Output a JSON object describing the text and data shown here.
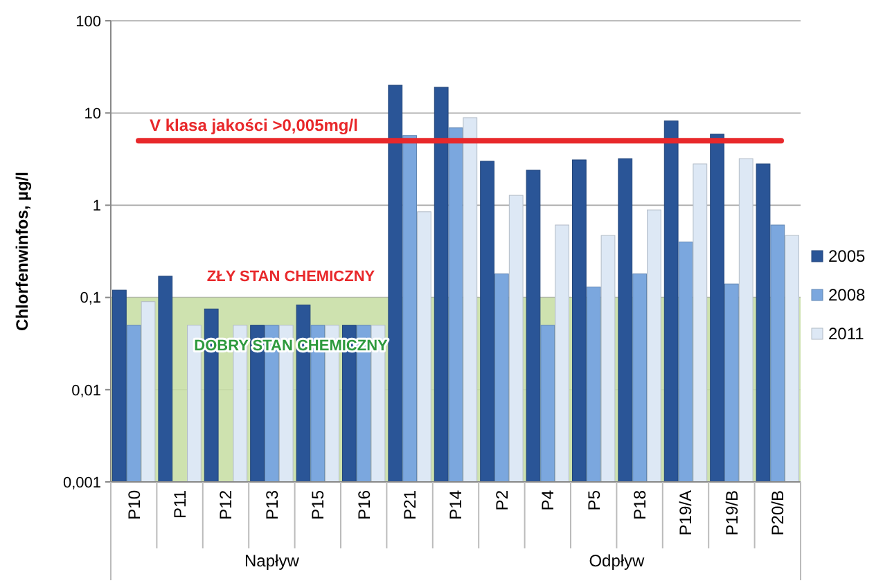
{
  "chart_data": {
    "type": "bar",
    "ylabel": "Chlorfenwinfos, µg/l",
    "categories": [
      "P10",
      "P11",
      "P12",
      "P13",
      "P15",
      "P16",
      "P21",
      "P14",
      "P2",
      "P4",
      "P5",
      "P18",
      "P19/A",
      "P19/B",
      "P20/B"
    ],
    "series": [
      {
        "name": "2005",
        "color": "#2a5597",
        "values": [
          0.12,
          0.17,
          0.075,
          0.05,
          0.083,
          0.05,
          20,
          19,
          3.0,
          2.4,
          3.1,
          3.2,
          8.2,
          5.9,
          2.8
        ]
      },
      {
        "name": "2008",
        "color": "#7ba7de",
        "values": [
          0.05,
          null,
          null,
          0.05,
          0.05,
          0.05,
          5.7,
          6.9,
          0.18,
          0.05,
          0.13,
          0.18,
          0.4,
          0.14,
          0.61
        ]
      },
      {
        "name": "2011",
        "color": "#dde8f5",
        "values": [
          0.09,
          0.05,
          0.05,
          0.05,
          0.05,
          0.05,
          0.85,
          8.9,
          1.28,
          0.61,
          0.47,
          0.89,
          2.8,
          3.2,
          0.47
        ]
      }
    ],
    "log": true,
    "ylim": [
      0.001,
      100
    ],
    "yticks": [
      {
        "value": 0.001,
        "label": "0,001"
      },
      {
        "value": 0.01,
        "label": "0,01"
      },
      {
        "value": 0.1,
        "label": "0,1"
      },
      {
        "value": 1,
        "label": "1"
      },
      {
        "value": 10,
        "label": "10"
      },
      {
        "value": 100,
        "label": "100"
      }
    ],
    "grid": "y",
    "legend": "right",
    "ref_lines": [
      {
        "axis": "y",
        "value": 5,
        "label": "V klasa jakości >0,005mg/l",
        "color": "#e8282b"
      }
    ],
    "bands": [
      {
        "axis": "y",
        "from": 0.001,
        "to": 0.1,
        "label": "DOBRY STAN CHEMICZNY",
        "color": "#c9dfa6"
      }
    ],
    "annotations": [
      "ZŁY STAN CHEMICZNY",
      "Napływ",
      "Odpływ"
    ]
  }
}
